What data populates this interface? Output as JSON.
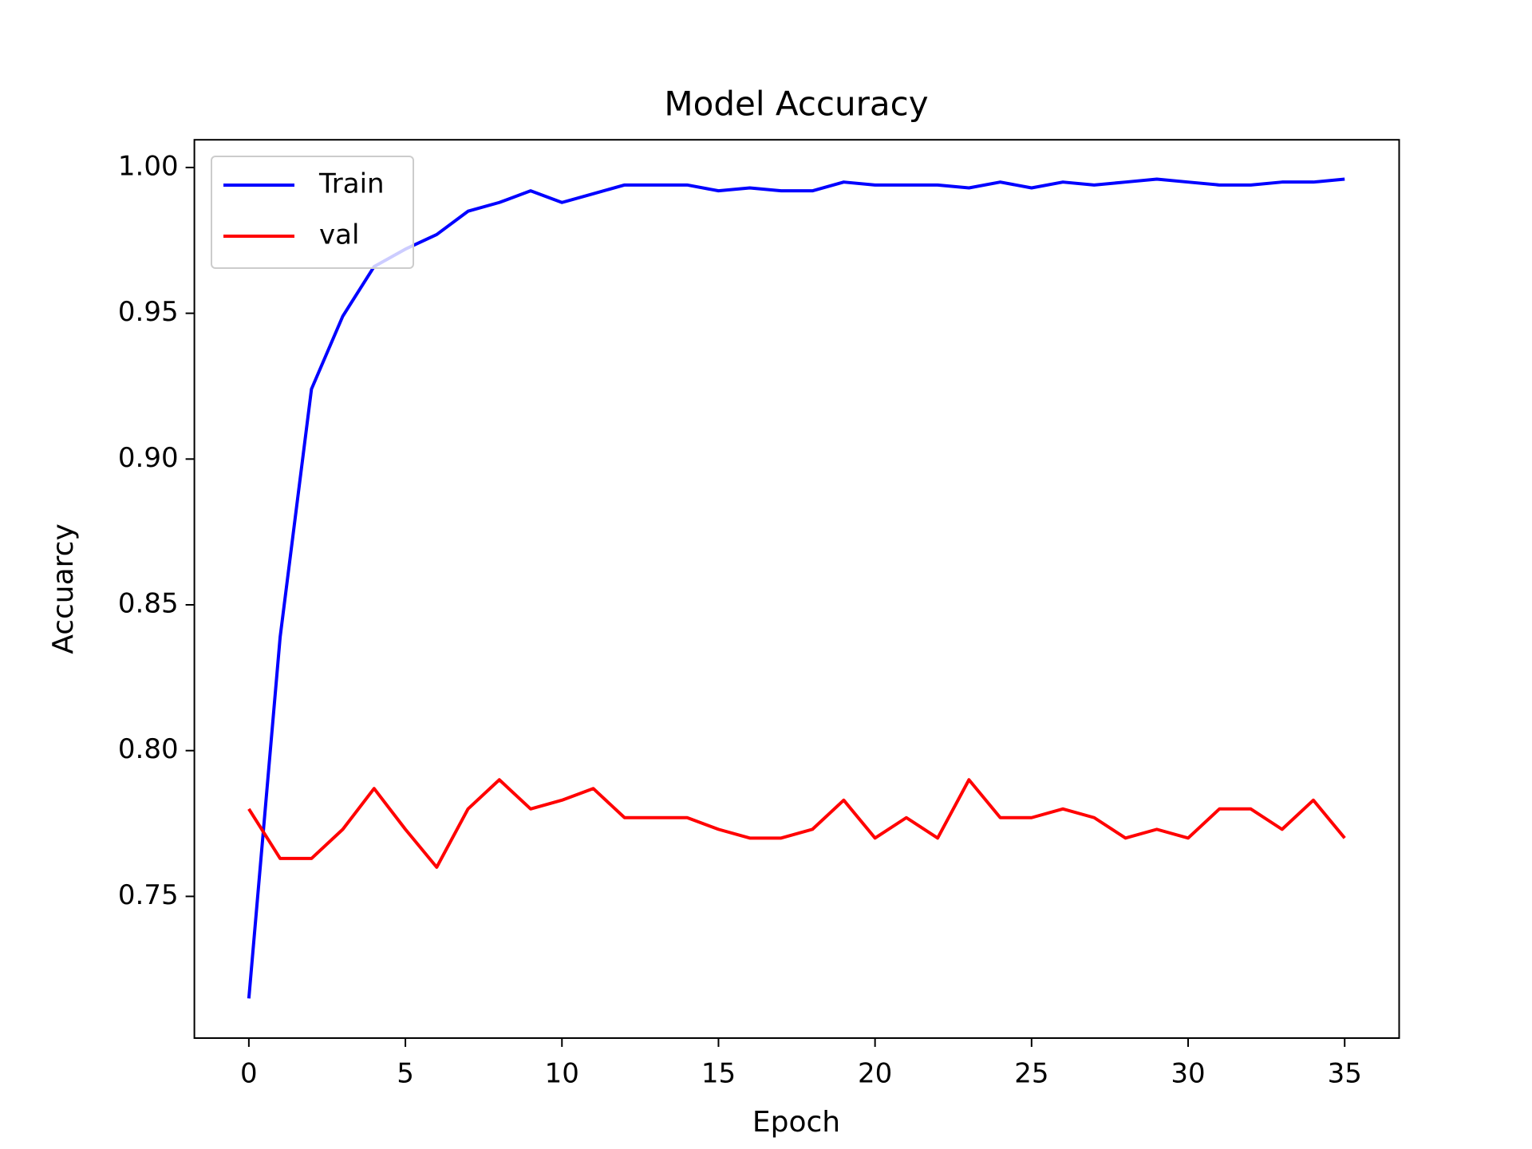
{
  "chart_data": {
    "type": "line",
    "title": "Model Accuracy",
    "x_label": "Epoch",
    "y_label": "Accuarcy",
    "x": [
      0,
      1,
      2,
      3,
      4,
      5,
      6,
      7,
      8,
      9,
      10,
      11,
      12,
      13,
      14,
      15,
      16,
      17,
      18,
      19,
      20,
      21,
      22,
      23,
      24,
      25,
      26,
      27,
      28,
      29,
      30,
      31,
      32,
      33,
      34,
      35
    ],
    "series": [
      {
        "name": "Train",
        "color": "#0000ff",
        "values": [
          0.715,
          0.839,
          0.924,
          0.949,
          0.966,
          0.972,
          0.977,
          0.985,
          0.988,
          0.992,
          0.988,
          0.991,
          0.994,
          0.994,
          0.994,
          0.992,
          0.993,
          0.992,
          0.992,
          0.995,
          0.994,
          0.994,
          0.994,
          0.993,
          0.995,
          0.993,
          0.995,
          0.994,
          0.995,
          0.996,
          0.995,
          0.994,
          0.994,
          0.995,
          0.995,
          0.996
        ]
      },
      {
        "name": "val",
        "color": "#ff0000",
        "values": [
          0.78,
          0.763,
          0.763,
          0.773,
          0.787,
          0.773,
          0.76,
          0.78,
          0.79,
          0.78,
          0.783,
          0.787,
          0.777,
          0.777,
          0.777,
          0.773,
          0.77,
          0.77,
          0.773,
          0.783,
          0.77,
          0.777,
          0.77,
          0.79,
          0.777,
          0.777,
          0.78,
          0.777,
          0.77,
          0.773,
          0.77,
          0.78,
          0.78,
          0.773,
          0.783,
          0.77
        ]
      }
    ],
    "xlim": [
      -1.74,
      36.74
    ],
    "xticks": [
      0,
      5,
      10,
      15,
      20,
      25,
      30,
      35
    ],
    "ylim": [
      0.7014,
      1.0095
    ],
    "yticks": [
      0.75,
      {
        "value": 0.8,
        "label": "0.80"
      },
      0.85,
      {
        "value": 0.9,
        "label": "0.90"
      },
      0.95,
      {
        "value": 1,
        "label": "1.00"
      }
    ],
    "legend": "upper left"
  }
}
